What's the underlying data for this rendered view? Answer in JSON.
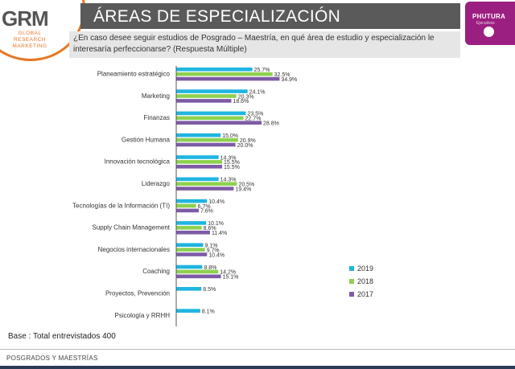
{
  "header": {
    "logo_left_main": "GRM",
    "logo_left_sub": "GLOBAL RESEARCH MARKETING",
    "title": "ÁREAS DE ESPECIALIZACIÓN",
    "logo_right_main": "PHUTURA",
    "logo_right_sub": "Ejecutivos"
  },
  "question": "¿En caso desee seguir estudios de Posgrado – Maestría, en qué área de estudio y especialización le interesaría perfeccionarse? (Respuesta Múltiple)",
  "footnote": "Base : Total entrevistados 400",
  "footer": "POSGRADOS Y MAESTRÍAS",
  "chart_data": {
    "type": "bar",
    "orientation": "horizontal",
    "categories": [
      "Planeamiento estratégico",
      "Marketing",
      "Finanzas",
      "Gestión Humana",
      "Innovación tecnológica",
      "Liderazgo",
      "Tecnologías de la Información (TI)",
      "Supply Chain Management",
      "Negocios internacionales",
      "Coaching",
      "Proyectos, Prevención",
      "Psicología y RRHH"
    ],
    "series": [
      {
        "name": "2019",
        "color": "#1fb5e0",
        "values": [
          25.7,
          24.1,
          23.5,
          15.0,
          14.3,
          14.3,
          10.4,
          10.1,
          9.1,
          8.8,
          8.5,
          8.1
        ]
      },
      {
        "name": "2018",
        "color": "#8dd14f",
        "values": [
          32.5,
          20.3,
          22.7,
          20.9,
          15.5,
          20.5,
          6.7,
          8.6,
          9.7,
          14.2,
          null,
          null
        ]
      },
      {
        "name": "2017",
        "color": "#7d5ba6",
        "values": [
          34.9,
          18.6,
          28.8,
          20.0,
          15.5,
          19.4,
          7.6,
          11.4,
          10.4,
          15.1,
          null,
          null
        ]
      }
    ],
    "value_labels": [
      [
        "25.7%",
        "24.1%",
        "23.5%",
        "15.0%",
        "14.3%",
        "14.3%",
        "10.4%",
        "10.1%",
        "9.1%",
        "8.8%",
        "8.5%",
        "8.1%"
      ],
      [
        "32.5%",
        "20.3%",
        "22.7%",
        "20.9%",
        "15.5%",
        "20.5%",
        "6.7%",
        "8.6%",
        "9.7%",
        "14.2%",
        "",
        ""
      ],
      [
        "34.9%",
        "18.6%",
        "28.8%",
        "20.0%",
        "15.5%",
        "19.4%",
        "7.6%",
        "11.4%",
        "10.4%",
        "15.1%",
        "",
        ""
      ]
    ],
    "legend_position": "right",
    "grid": false
  }
}
